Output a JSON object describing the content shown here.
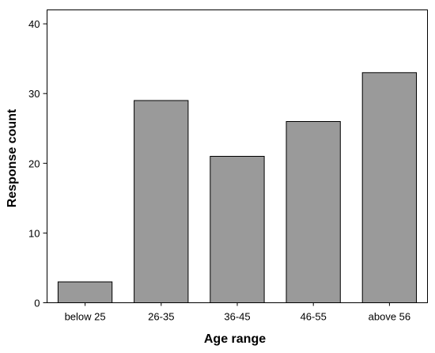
{
  "chart_data": {
    "type": "bar",
    "title": "",
    "xlabel": "Age range",
    "ylabel": "Response count",
    "categories": [
      "below 25",
      "26-35",
      "36-45",
      "46-55",
      "above 56"
    ],
    "values": [
      3,
      29,
      21,
      26,
      33
    ],
    "ylim": [
      0,
      42
    ],
    "yticks": [
      0,
      10,
      20,
      30,
      40
    ],
    "grid": false,
    "legend": "none",
    "colors": {
      "bar_fill": "#9a9a9a",
      "bar_stroke": "#000000",
      "axis": "#000000",
      "background": "#ffffff"
    }
  }
}
